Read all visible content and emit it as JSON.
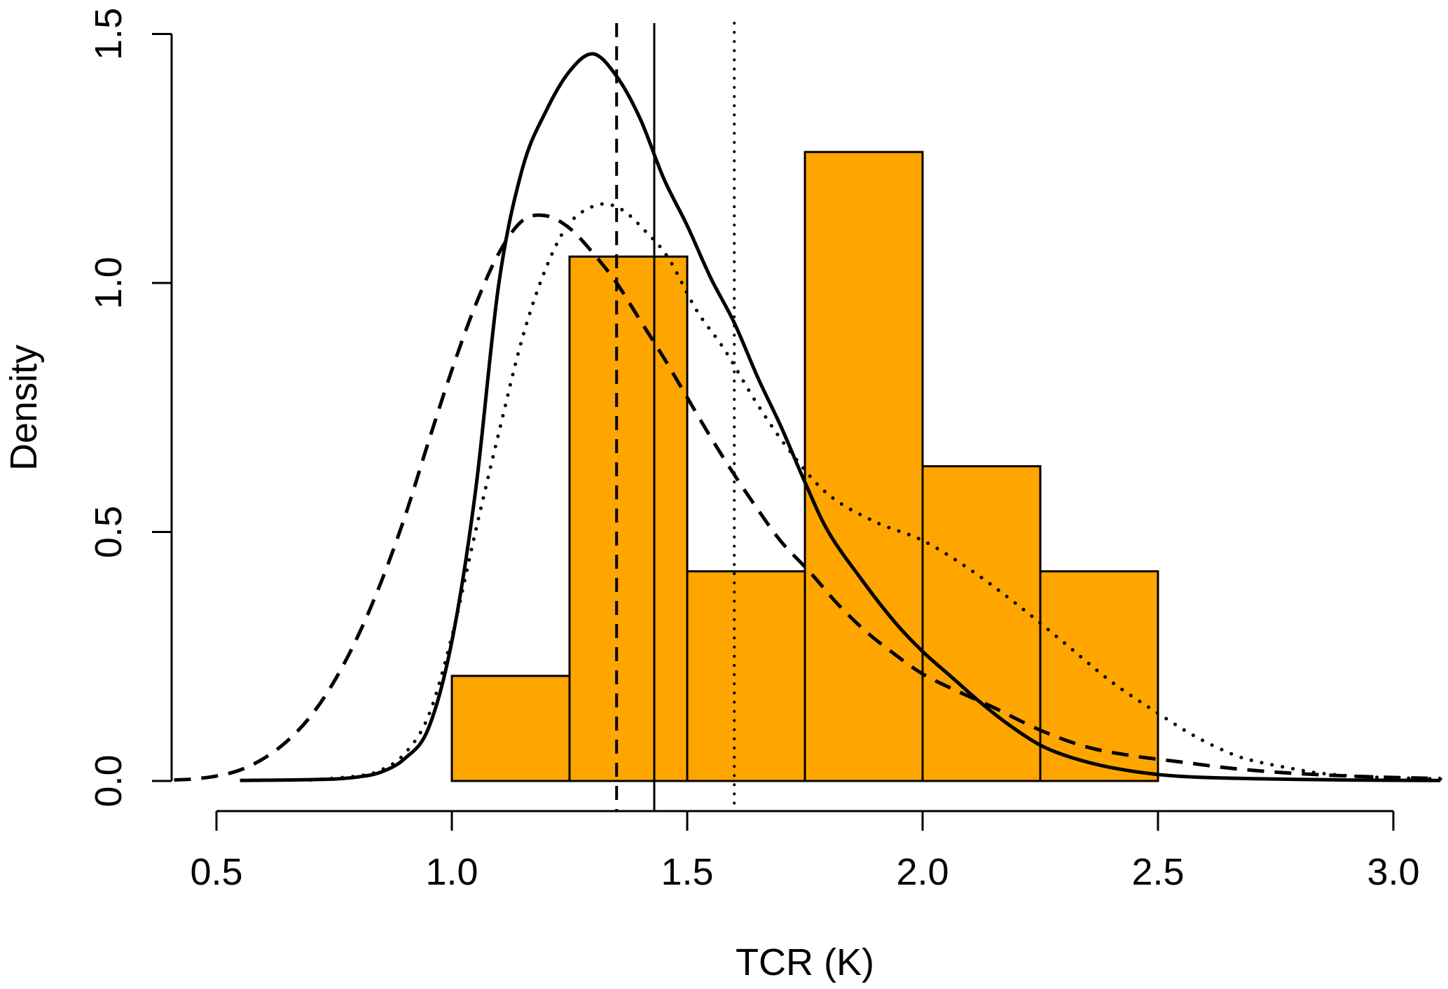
{
  "chart_data": {
    "type": "histogram_with_density_curves",
    "title": "",
    "xlabel": "TCR (K)",
    "ylabel": "Density",
    "xlim": [
      0.405,
      3.106
    ],
    "ylim": [
      0,
      1.5
    ],
    "x_ticks": [
      0.5,
      1.0,
      1.5,
      2.0,
      2.5,
      3.0
    ],
    "x_tick_labels": [
      "0.5",
      "1.0",
      "1.5",
      "2.0",
      "2.5",
      "3.0"
    ],
    "y_ticks": [
      0.0,
      0.5,
      1.0,
      1.5
    ],
    "y_tick_labels": [
      "0.0",
      "0.5",
      "1.0",
      "1.5"
    ],
    "grid": "off",
    "legend": "none",
    "colors": {
      "histogram_fill": "#FFA500",
      "line_color": "#000000",
      "background": "#FFFFFF"
    },
    "histogram": {
      "bin_width": 0.25,
      "bins": [
        {
          "from": 1.0,
          "to": 1.25,
          "density": 0.211
        },
        {
          "from": 1.25,
          "to": 1.5,
          "density": 1.053
        },
        {
          "from": 1.5,
          "to": 1.75,
          "density": 0.421
        },
        {
          "from": 1.75,
          "to": 2.0,
          "density": 1.263
        },
        {
          "from": 2.0,
          "to": 2.25,
          "density": 0.632
        },
        {
          "from": 2.25,
          "to": 2.5,
          "density": 0.421
        }
      ]
    },
    "curves": [
      {
        "name": "solid-density-curve",
        "style": "solid",
        "peak": {
          "x": 1.3,
          "density": 1.46
        },
        "points": [
          [
            0.55,
            0.001
          ],
          [
            0.65,
            0.002
          ],
          [
            0.75,
            0.004
          ],
          [
            0.8,
            0.008
          ],
          [
            0.85,
            0.018
          ],
          [
            0.9,
            0.045
          ],
          [
            0.95,
            0.105
          ],
          [
            1.0,
            0.28
          ],
          [
            1.05,
            0.58
          ],
          [
            1.1,
            1.0
          ],
          [
            1.15,
            1.23
          ],
          [
            1.2,
            1.345
          ],
          [
            1.25,
            1.425
          ],
          [
            1.3,
            1.46
          ],
          [
            1.35,
            1.415
          ],
          [
            1.4,
            1.33
          ],
          [
            1.45,
            1.21
          ],
          [
            1.5,
            1.115
          ],
          [
            1.55,
            1.01
          ],
          [
            1.6,
            0.92
          ],
          [
            1.65,
            0.81
          ],
          [
            1.7,
            0.71
          ],
          [
            1.75,
            0.6
          ],
          [
            1.8,
            0.5
          ],
          [
            1.87,
            0.405
          ],
          [
            1.94,
            0.32
          ],
          [
            2.0,
            0.26
          ],
          [
            2.06,
            0.21
          ],
          [
            2.12,
            0.16
          ],
          [
            2.18,
            0.115
          ],
          [
            2.25,
            0.072
          ],
          [
            2.32,
            0.046
          ],
          [
            2.4,
            0.027
          ],
          [
            2.5,
            0.013
          ],
          [
            2.6,
            0.007
          ],
          [
            2.75,
            0.004
          ],
          [
            2.9,
            0.002
          ],
          [
            3.1,
            0.001
          ]
        ]
      },
      {
        "name": "dashed-density-curve",
        "style": "dashed",
        "peak": {
          "x": 1.17,
          "density": 1.135
        },
        "points": [
          [
            0.41,
            0.002
          ],
          [
            0.45,
            0.004
          ],
          [
            0.5,
            0.01
          ],
          [
            0.55,
            0.022
          ],
          [
            0.6,
            0.045
          ],
          [
            0.65,
            0.08
          ],
          [
            0.7,
            0.13
          ],
          [
            0.75,
            0.2
          ],
          [
            0.8,
            0.29
          ],
          [
            0.85,
            0.4
          ],
          [
            0.9,
            0.53
          ],
          [
            0.95,
            0.68
          ],
          [
            1.0,
            0.825
          ],
          [
            1.05,
            0.955
          ],
          [
            1.1,
            1.06
          ],
          [
            1.15,
            1.125
          ],
          [
            1.2,
            1.135
          ],
          [
            1.25,
            1.11
          ],
          [
            1.3,
            1.06
          ],
          [
            1.35,
            1.0
          ],
          [
            1.4,
            0.925
          ],
          [
            1.45,
            0.85
          ],
          [
            1.5,
            0.77
          ],
          [
            1.55,
            0.69
          ],
          [
            1.6,
            0.615
          ],
          [
            1.65,
            0.545
          ],
          [
            1.7,
            0.48
          ],
          [
            1.76,
            0.42
          ],
          [
            1.82,
            0.355
          ],
          [
            1.88,
            0.3
          ],
          [
            1.94,
            0.255
          ],
          [
            2.0,
            0.215
          ],
          [
            2.07,
            0.182
          ],
          [
            2.15,
            0.148
          ],
          [
            2.25,
            0.102
          ],
          [
            2.35,
            0.068
          ],
          [
            2.45,
            0.05
          ],
          [
            2.55,
            0.038
          ],
          [
            2.65,
            0.026
          ],
          [
            2.76,
            0.017
          ],
          [
            2.88,
            0.011
          ],
          [
            3.0,
            0.007
          ],
          [
            3.1,
            0.005
          ]
        ]
      },
      {
        "name": "dotted-density-curve",
        "style": "dotted",
        "peak": {
          "x": 1.31,
          "density": 1.157
        },
        "points": [
          [
            0.7,
            0.002
          ],
          [
            0.8,
            0.01
          ],
          [
            0.85,
            0.022
          ],
          [
            0.9,
            0.055
          ],
          [
            0.95,
            0.13
          ],
          [
            1.0,
            0.29
          ],
          [
            1.05,
            0.5
          ],
          [
            1.1,
            0.7
          ],
          [
            1.15,
            0.89
          ],
          [
            1.2,
            1.03
          ],
          [
            1.25,
            1.12
          ],
          [
            1.31,
            1.157
          ],
          [
            1.36,
            1.148
          ],
          [
            1.41,
            1.105
          ],
          [
            1.46,
            1.05
          ],
          [
            1.52,
            0.945
          ],
          [
            1.58,
            0.865
          ],
          [
            1.65,
            0.755
          ],
          [
            1.72,
            0.66
          ],
          [
            1.8,
            0.575
          ],
          [
            1.9,
            0.52
          ],
          [
            2.0,
            0.483
          ],
          [
            2.1,
            0.425
          ],
          [
            2.2,
            0.355
          ],
          [
            2.3,
            0.278
          ],
          [
            2.4,
            0.2
          ],
          [
            2.5,
            0.136
          ],
          [
            2.58,
            0.089
          ],
          [
            2.66,
            0.053
          ],
          [
            2.71,
            0.039
          ],
          [
            2.79,
            0.024
          ],
          [
            2.85,
            0.015
          ],
          [
            2.95,
            0.008
          ],
          [
            3.1,
            0.004
          ]
        ]
      }
    ],
    "vertical_lines": [
      {
        "name": "dashed-vline",
        "style": "dashed",
        "x": 1.35
      },
      {
        "name": "solid-vline",
        "style": "solid",
        "x": 1.43
      },
      {
        "name": "dotted-vline",
        "style": "dotted",
        "x": 1.6
      }
    ]
  }
}
